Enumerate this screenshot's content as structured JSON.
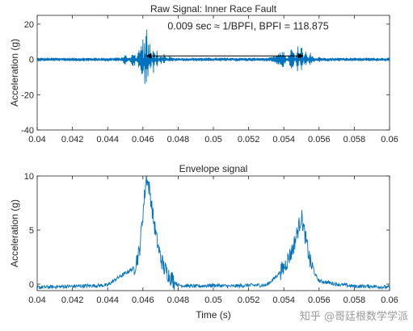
{
  "chart_data": [
    {
      "type": "line",
      "title": "Raw Signal: Inner Race Fault",
      "xlabel": "",
      "ylabel": "Acceleration (g)",
      "xlim": [
        0.04,
        0.06
      ],
      "ylim": [
        -40,
        25
      ],
      "x_ticks": [
        "0.04",
        "0.042",
        "0.044",
        "0.046",
        "0.048",
        "0.05",
        "0.052",
        "0.054",
        "0.056",
        "0.058",
        "0.06"
      ],
      "y_ticks": [
        "-40",
        "-20",
        "0",
        "20"
      ],
      "annotation": {
        "text": "0.009 sec ≈ 1/BPFI, BPFI = 118.875",
        "arrow_x": [
          0.0462,
          0.0551
        ],
        "arrow_y": 2,
        "text_x": 0.0474,
        "text_y": 17
      },
      "line_color": "#0072BD",
      "series": [
        {
          "x": [
            0.04,
            0.041,
            0.042,
            0.043,
            0.044,
            0.0445,
            0.045,
            0.0455,
            0.046,
            0.0461,
            0.0462,
            0.0463,
            0.0464,
            0.0466,
            0.0468,
            0.047,
            0.0472,
            0.0475,
            0.048,
            0.049,
            0.05,
            0.051,
            0.052,
            0.053,
            0.0535,
            0.054,
            0.0545,
            0.0548,
            0.055,
            0.0552,
            0.0555,
            0.056,
            0.0565,
            0.057,
            0.058,
            0.059,
            0.06
          ],
          "y": [
            0,
            0.5,
            -0.5,
            0.5,
            -1,
            1.5,
            -3,
            5,
            -15,
            22,
            -30,
            18,
            -10,
            8,
            -6,
            4,
            -3,
            2,
            -1,
            0.5,
            -0.5,
            0.5,
            -0.5,
            0.5,
            2,
            5,
            -8,
            8,
            -10,
            6,
            -4,
            2,
            -1.5,
            1,
            -0.5,
            0.5,
            0
          ]
        }
      ]
    },
    {
      "type": "line",
      "title": "Envelope signal",
      "xlabel": "Time (s)",
      "ylabel": "Acceleration (g)",
      "xlim": [
        0.04,
        0.06
      ],
      "ylim": [
        -0.6,
        10
      ],
      "x_ticks": [
        "0.04",
        "0.042",
        "0.044",
        "0.046",
        "0.048",
        "0.05",
        "0.052",
        "0.054",
        "0.056",
        "0.058",
        "0.06"
      ],
      "y_ticks": [
        "0",
        "5",
        "10"
      ],
      "line_color": "#0072BD",
      "series": [
        {
          "x": [
            0.04,
            0.042,
            0.044,
            0.0445,
            0.045,
            0.0455,
            0.0458,
            0.046,
            0.0462,
            0.0464,
            0.0466,
            0.0468,
            0.047,
            0.0472,
            0.0475,
            0.0478,
            0.048,
            0.049,
            0.05,
            0.051,
            0.052,
            0.053,
            0.0535,
            0.054,
            0.0545,
            0.0548,
            0.055,
            0.0552,
            0.0555,
            0.0558,
            0.056,
            0.057,
            0.058,
            0.059,
            0.06
          ],
          "y": [
            -0.3,
            -0.2,
            -0.1,
            0.5,
            1.0,
            1.5,
            3.0,
            6.5,
            10.0,
            8.5,
            6.0,
            4.0,
            2.5,
            1.5,
            0.8,
            0.2,
            -0.1,
            -0.2,
            -0.1,
            -0.2,
            -0.1,
            -0.1,
            0.6,
            1.5,
            3.2,
            5.0,
            6.3,
            4.5,
            2.0,
            0.8,
            0.3,
            0.0,
            -0.2,
            -0.2,
            -0.3
          ]
        }
      ]
    }
  ],
  "watermark": "知乎 @哥廷根数学学派"
}
